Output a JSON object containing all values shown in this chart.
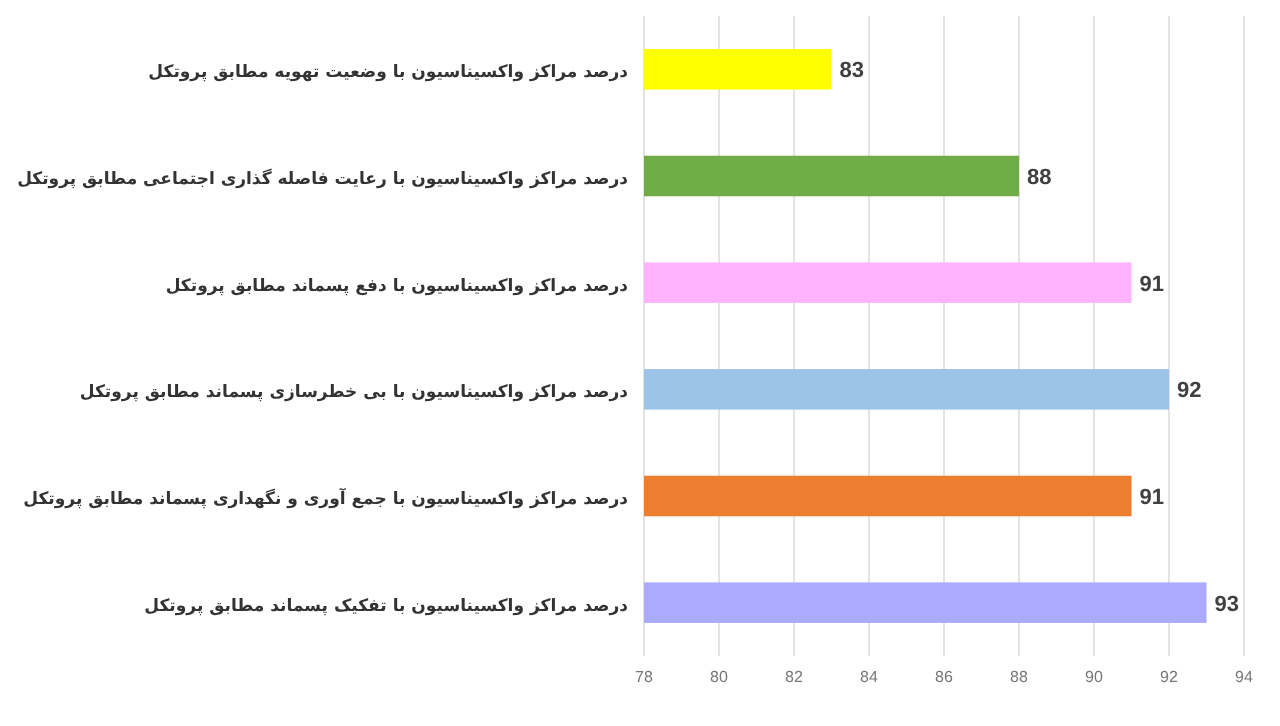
{
  "chart_data": {
    "type": "bar",
    "orientation": "horizontal",
    "categories": [
      "درصد مراکز واکسیناسیون با وضعیت تهویه مطابق پروتکل",
      "درصد مراکز واکسیناسیون با رعایت فاصله گذاری اجتماعی مطابق پروتکل",
      "درصد مراکز واکسیناسیون با دفع پسماند مطابق پروتکل",
      "درصد مراکز واکسیناسیون با بی خطرسازی پسماند مطابق پروتکل",
      "درصد مراکز واکسیناسیون با جمع آوری و نگهداری پسماند مطابق پروتکل",
      "درصد مراکز واکسیناسیون با تفکیک پسماند مطابق پروتکل"
    ],
    "values": [
      83,
      88,
      91,
      92,
      91,
      93
    ],
    "colors": [
      "#ffff00",
      "#70ad47",
      "#ffb3ff",
      "#9dc3e6",
      "#ed7d31",
      "#aaaaff"
    ],
    "xlim": [
      78,
      94
    ],
    "xticks": [
      78,
      80,
      82,
      84,
      86,
      88,
      90,
      92,
      94
    ],
    "grid": "x",
    "data_labels": true
  }
}
